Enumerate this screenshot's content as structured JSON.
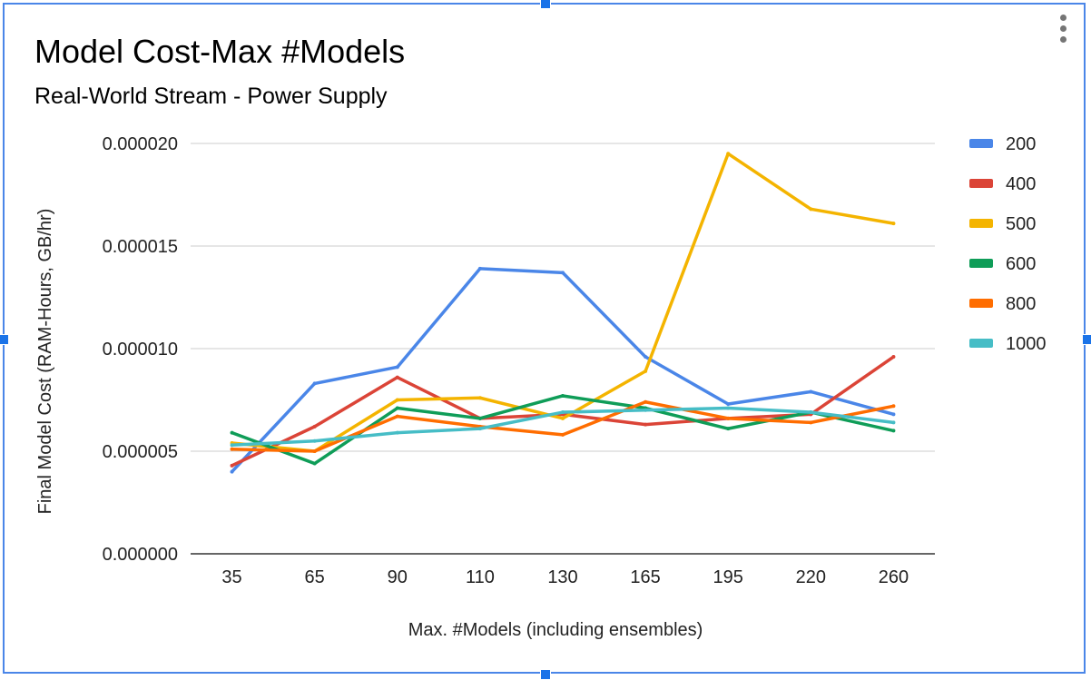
{
  "chart_data": {
    "type": "line",
    "title": "Model Cost-Max #Models",
    "subtitle": "Real-World Stream - Power Supply",
    "xlabel": "Max. #Models (including ensembles)",
    "ylabel": "Final Model Cost (RAM-Hours, GB/hr)",
    "categories": [
      "35",
      "65",
      "90",
      "110",
      "130",
      "165",
      "195",
      "220",
      "260"
    ],
    "ylim": [
      0,
      2e-05
    ],
    "yticks": [
      "0.000000",
      "0.000005",
      "0.000010",
      "0.000015",
      "0.000020"
    ],
    "ytick_values": [
      0,
      5e-06,
      1e-05,
      1.5e-05,
      2e-05
    ],
    "grid": true,
    "legend_position": "right",
    "series": [
      {
        "name": "200",
        "color": "#4a86e8",
        "values": [
          4e-06,
          8.3e-06,
          9.1e-06,
          1.39e-05,
          1.37e-05,
          9.6e-06,
          7.3e-06,
          7.9e-06,
          6.8e-06
        ]
      },
      {
        "name": "400",
        "color": "#db4437",
        "values": [
          4.3e-06,
          6.2e-06,
          8.6e-06,
          6.6e-06,
          6.8e-06,
          6.3e-06,
          6.6e-06,
          6.8e-06,
          9.6e-06
        ]
      },
      {
        "name": "500",
        "color": "#f4b400",
        "values": [
          5.4e-06,
          5e-06,
          7.5e-06,
          7.6e-06,
          6.6e-06,
          8.9e-06,
          1.95e-05,
          1.68e-05,
          1.61e-05
        ]
      },
      {
        "name": "600",
        "color": "#0f9d58",
        "values": [
          5.9e-06,
          4.4e-06,
          7.1e-06,
          6.6e-06,
          7.7e-06,
          7.1e-06,
          6.1e-06,
          6.9e-06,
          6e-06
        ]
      },
      {
        "name": "800",
        "color": "#ff6d00",
        "values": [
          5.1e-06,
          5e-06,
          6.7e-06,
          6.2e-06,
          5.8e-06,
          7.4e-06,
          6.6e-06,
          6.4e-06,
          7.2e-06
        ]
      },
      {
        "name": "1000",
        "color": "#46bdc6",
        "values": [
          5.3e-06,
          5.5e-06,
          5.9e-06,
          6.1e-06,
          6.9e-06,
          7e-06,
          7.1e-06,
          6.9e-06,
          6.4e-06
        ]
      }
    ]
  }
}
